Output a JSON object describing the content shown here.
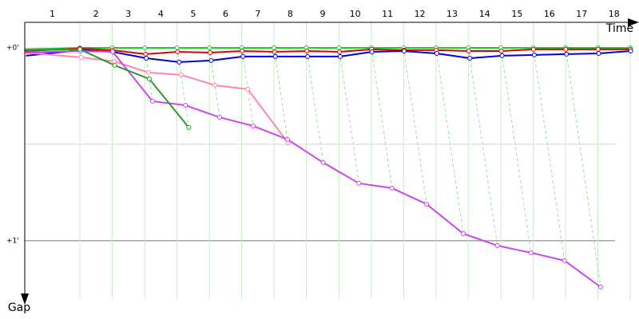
{
  "chart_data": {
    "type": "gap",
    "x_label": "Time",
    "y_label": "Gap",
    "categories": [
      "1",
      "2",
      "3",
      "4",
      "5",
      "6",
      "7",
      "8",
      "9",
      "10",
      "11",
      "12",
      "13",
      "14",
      "15",
      "16",
      "17",
      "18"
    ],
    "x": [
      0,
      1.94,
      3.08,
      4.23,
      5.37,
      6.51,
      7.65,
      8.79,
      9.93,
      11.08,
      12.22,
      13.36,
      14.5,
      15.64,
      16.79,
      17.93,
      19.07,
      20.21,
      21.35
    ],
    "xlim": [
      0,
      21.35
    ],
    "ylim": [
      -0.132,
      1.302
    ],
    "yticks": [
      {
        "value": 0,
        "label": "+0'"
      },
      {
        "value": 1,
        "label": "+1'"
      }
    ],
    "y_minor_grid": [
      0.5
    ],
    "grid": true,
    "series": [
      {
        "color": "#22cc22",
        "values": [
          0.008,
          0,
          0,
          0,
          0,
          0,
          0,
          0,
          0,
          0,
          0,
          0,
          0,
          0,
          0,
          0,
          0,
          0,
          0
        ]
      },
      {
        "color": "#e00000",
        "values": [
          0.017,
          0.004,
          0.012,
          0.033,
          0.021,
          0.025,
          0.017,
          0.021,
          0.017,
          0.021,
          0.008,
          0.012,
          0.012,
          0.017,
          0.017,
          0.008,
          0.008,
          0.008,
          0.008
        ]
      },
      {
        "color": "#0000dd",
        "values": [
          0.041,
          0.012,
          0.021,
          0.054,
          0.074,
          0.066,
          0.045,
          0.045,
          0.045,
          0.045,
          0.021,
          0.017,
          0.029,
          0.054,
          0.041,
          0.037,
          0.033,
          0.029,
          0.017
        ]
      },
      {
        "color": "#ff88aa",
        "values": [
          0.025,
          0.05,
          0.07,
          0.128,
          0.14,
          0.194,
          0.215,
          0.492,
          null,
          null,
          null,
          null,
          null,
          null,
          null,
          null,
          null,
          null,
          null
        ]
      },
      {
        "color": "#cc44ee",
        "values": [
          0.025,
          0.017,
          0.021,
          0.277,
          0.298,
          0.36,
          0.405,
          0.475,
          0.595,
          0.702,
          0.727,
          0.81,
          0.963,
          1.025,
          1.062,
          1.103,
          1.24,
          null,
          null
        ]
      },
      {
        "color": "#2a9a2a",
        "values": [
          0.012,
          0.008,
          0.091,
          0.161,
          0.413,
          null,
          null,
          null,
          null,
          null,
          null,
          null,
          null,
          null,
          null,
          null,
          null,
          null,
          null
        ]
      }
    ]
  }
}
